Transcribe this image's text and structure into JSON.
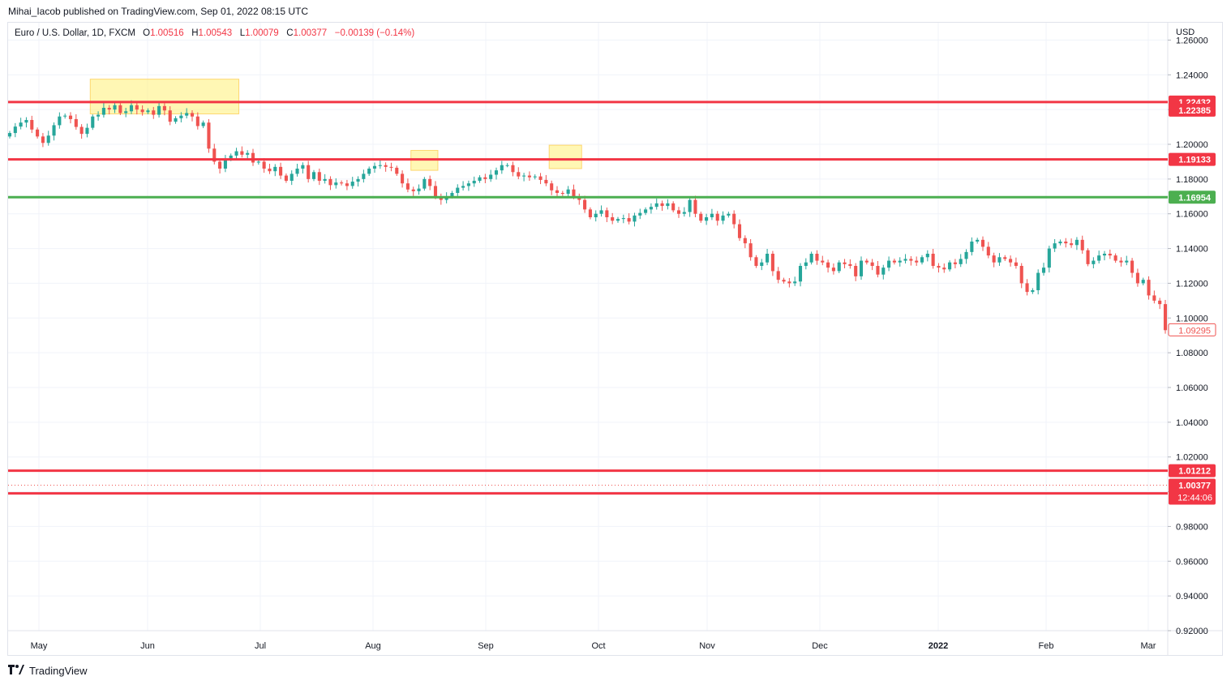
{
  "publisher_line": "Mihai_Iacob published on TradingView.com, Sep 01, 2022 08:15 UTC",
  "legend": {
    "symbol": "Euro / U.S. Dollar, 1D, FXCM",
    "o_label": "O",
    "o_value": "1.00516",
    "h_label": "H",
    "h_value": "1.00543",
    "l_label": "L",
    "l_value": "1.00079",
    "c_label": "C",
    "c_value": "1.00377",
    "change": "−0.00139 (−0.14%)"
  },
  "currency": "USD",
  "footer": {
    "brand": "TradingView",
    "logo_icon": "tradingview-logo-icon"
  },
  "colors": {
    "up": "#26a69a",
    "down": "#ef5350",
    "resistance": "#f23645",
    "support": "#4caf50",
    "highlight": "#fff176"
  },
  "chart_data": {
    "type": "candlestick",
    "title": "Euro / U.S. Dollar, 1D, FXCM",
    "ylim": [
      0.92,
      1.27
    ],
    "y_ticks": [
      "1.26000",
      "1.24000",
      "1.22000",
      "1.20000",
      "1.18000",
      "1.16000",
      "1.14000",
      "1.12000",
      "1.10000",
      "1.08000",
      "1.06000",
      "1.04000",
      "1.02000",
      "1.00000",
      "0.98000",
      "0.96000",
      "0.94000",
      "0.92000"
    ],
    "x_ticks": [
      "May",
      "Jun",
      "Jul",
      "Aug",
      "Sep",
      "Oct",
      "Nov",
      "Dec",
      "2022",
      "Feb",
      "Mar"
    ],
    "closes": [
      1.2065,
      1.2102,
      1.2125,
      1.214,
      1.2085,
      1.2045,
      1.2008,
      1.205,
      1.211,
      1.216,
      1.2165,
      1.2145,
      1.21,
      1.206,
      1.2095,
      1.216,
      1.217,
      1.221,
      1.22,
      1.2225,
      1.218,
      1.219,
      1.2225,
      1.22,
      1.2185,
      1.2195,
      1.217,
      1.222,
      1.2195,
      1.213,
      1.215,
      1.2165,
      1.218,
      1.216,
      1.2105,
      1.2125,
      1.1975,
      1.19,
      1.186,
      1.1915,
      1.1935,
      1.196,
      1.194,
      1.195,
      1.1895,
      1.19,
      1.186,
      1.1845,
      1.187,
      1.182,
      1.179,
      1.183,
      1.186,
      1.188,
      1.18,
      1.184,
      1.179,
      1.18,
      1.1765,
      1.178,
      1.1775,
      1.176,
      1.1785,
      1.18,
      1.183,
      1.186,
      1.1875,
      1.188,
      1.187,
      1.1865,
      1.183,
      1.1775,
      1.174,
      1.173,
      1.1745,
      1.18,
      1.176,
      1.17,
      1.168,
      1.17,
      1.172,
      1.175,
      1.176,
      1.1775,
      1.179,
      1.181,
      1.18,
      1.1825,
      1.185,
      1.188,
      1.188,
      1.184,
      1.1815,
      1.182,
      1.181,
      1.1815,
      1.1795,
      1.1775,
      1.1735,
      1.172,
      1.1715,
      1.174,
      1.17,
      1.168,
      1.1625,
      1.158,
      1.16,
      1.162,
      1.158,
      1.156,
      1.157,
      1.1575,
      1.1555,
      1.159,
      1.1605,
      1.1625,
      1.164,
      1.166,
      1.1645,
      1.166,
      1.162,
      1.16,
      1.161,
      1.168,
      1.16,
      1.156,
      1.158,
      1.16,
      1.156,
      1.159,
      1.16,
      1.154,
      1.146,
      1.143,
      1.135,
      1.13,
      1.132,
      1.137,
      1.127,
      1.122,
      1.121,
      1.12,
      1.121,
      1.13,
      1.132,
      1.137,
      1.133,
      1.132,
      1.129,
      1.127,
      1.132,
      1.131,
      1.13,
      1.124,
      1.133,
      1.132,
      1.13,
      1.125,
      1.129,
      1.133,
      1.132,
      1.133,
      1.134,
      1.133,
      1.132,
      1.135,
      1.137,
      1.13,
      1.129,
      1.128,
      1.132,
      1.131,
      1.134,
      1.138,
      1.144,
      1.145,
      1.141,
      1.136,
      1.132,
      1.135,
      1.134,
      1.132,
      1.13,
      1.12,
      1.115,
      1.116,
      1.126,
      1.129,
      1.14,
      1.143,
      1.144,
      1.143,
      1.142,
      1.145,
      1.139,
      1.131,
      1.133,
      1.136,
      1.137,
      1.136,
      1.133,
      1.132,
      1.133,
      1.126,
      1.12,
      1.122,
      1.113,
      1.11,
      1.108,
      1.093
    ]
  },
  "levels": [
    {
      "value": 1.22432,
      "label": "1.22432",
      "kind": "resistance"
    },
    {
      "value": 1.22385,
      "label": "1.22385",
      "kind": "resistance-label"
    },
    {
      "value": 1.19133,
      "label": "1.19133",
      "kind": "resistance"
    },
    {
      "value": 1.16954,
      "label": "1.16954",
      "kind": "support"
    },
    {
      "value": 1.01212,
      "label": "1.01212",
      "kind": "resistance"
    },
    {
      "value": 0.99906,
      "label": "0.99906",
      "kind": "resistance"
    }
  ],
  "current_price": {
    "value": 1.00377,
    "label": "1.00377",
    "countdown": "12:44:06"
  },
  "last_bar_price": {
    "value": 1.09295,
    "label": "1.09295"
  },
  "highlight_zones": [
    {
      "from_index": 15,
      "to_index": 41,
      "top": 1.2375,
      "bottom": 1.2175
    },
    {
      "from_index": 73,
      "to_index": 77,
      "top": 1.1965,
      "bottom": 1.185
    },
    {
      "from_index": 98,
      "to_index": 103,
      "top": 1.1995,
      "bottom": 1.186
    }
  ]
}
